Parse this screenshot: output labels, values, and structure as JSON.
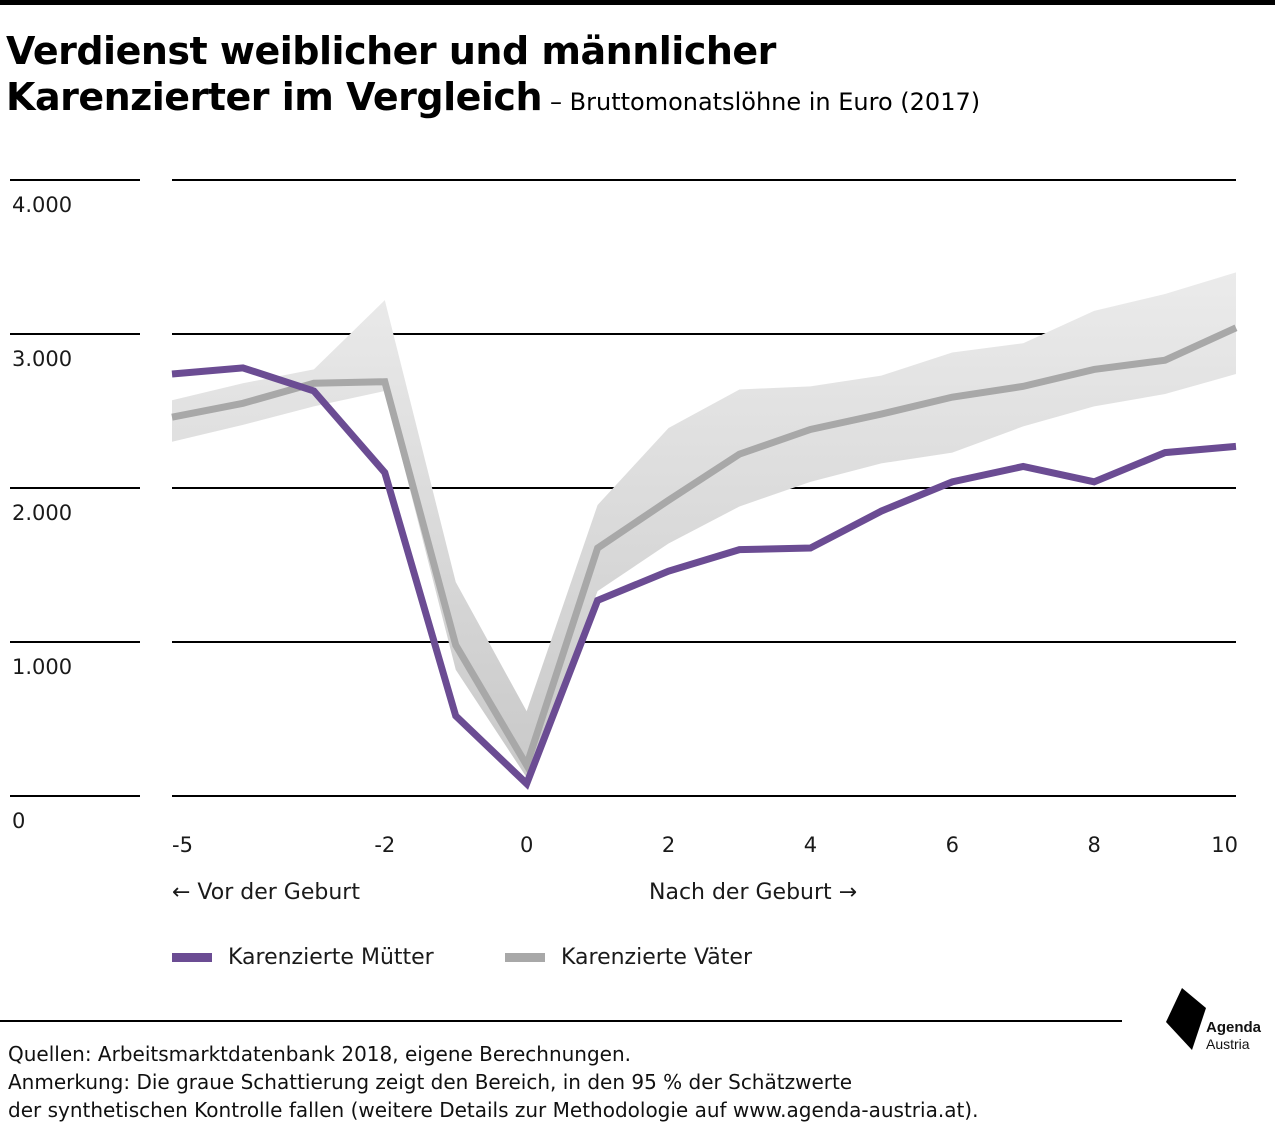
{
  "title": {
    "line1": "Verdienst weiblicher und männlicher",
    "line2": "Karenzierter im Vergleich",
    "subtitle": "– Bruttomonatslöhne in Euro (2017)"
  },
  "chart_data": {
    "type": "line",
    "x": [
      -5,
      -4,
      -3,
      -2,
      -1,
      0,
      1,
      2,
      3,
      4,
      5,
      6,
      7,
      8,
      9,
      10
    ],
    "ylim": [
      0,
      4000
    ],
    "xlim": [
      -5,
      10
    ],
    "y_ticks": [
      0,
      1000,
      2000,
      3000,
      4000
    ],
    "y_tick_labels": [
      "0",
      "1.000",
      "2.000",
      "3.000",
      "4.000"
    ],
    "x_ticks": [
      -5,
      -2,
      0,
      2,
      4,
      6,
      8,
      10
    ],
    "x_tick_labels": [
      "-5",
      "-2",
      "0",
      "2",
      "4",
      "6",
      "8",
      "10"
    ],
    "grid": true,
    "series": [
      {
        "name": "Karenzierte Mütter",
        "color": "#6b4c93",
        "values": [
          2740,
          2780,
          2630,
          2100,
          520,
          80,
          1270,
          1460,
          1600,
          1610,
          1850,
          2040,
          2140,
          2040,
          2230,
          2270
        ]
      },
      {
        "name": "Karenzierte Väter",
        "color": "#a8a8a8",
        "values": [
          2460,
          2550,
          2680,
          2690,
          980,
          200,
          1610,
          1920,
          2220,
          2380,
          2480,
          2590,
          2660,
          2770,
          2830,
          3040
        ],
        "band_upper": [
          2570,
          2680,
          2770,
          3220,
          1390,
          550,
          1890,
          2390,
          2640,
          2660,
          2730,
          2880,
          2940,
          3150,
          3260,
          3400
        ],
        "band_lower": [
          2300,
          2410,
          2530,
          2630,
          820,
          120,
          1330,
          1640,
          1880,
          2040,
          2160,
          2230,
          2400,
          2530,
          2610,
          2740
        ]
      }
    ],
    "annotations": {
      "before": "← Vor der Geburt",
      "after": "Nach der Geburt →"
    }
  },
  "legend": {
    "mothers": "Karenzierte Mütter",
    "fathers": "Karenzierte Väter"
  },
  "footer": {
    "sources": "Quellen: Arbeitsmarktdatenbank 2018, eigene Berechnungen.",
    "note_line1": "Anmerkung: Die graue Schattierung zeigt den Bereich, in den 95 % der Schätzwerte",
    "note_line2": "der synthetischen Kontrolle fallen (weitere Details zur Methodologie auf www.agenda-austria.at)."
  },
  "logo": {
    "line1": "Agenda",
    "line2": "Austria"
  },
  "colors": {
    "mothers": "#6b4c93",
    "fathers": "#a8a8a8",
    "band": "#d8d8d8"
  }
}
